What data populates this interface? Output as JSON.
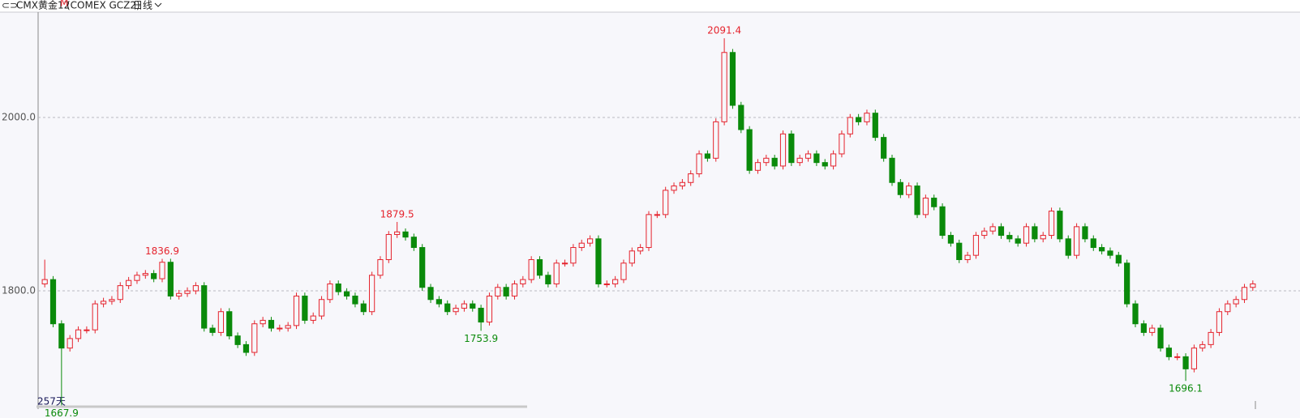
{
  "chart_data": {
    "type": "candlestick",
    "title": "CMX黄金12",
    "title_sup": "M",
    "code": "(COMEX GCZ2)",
    "period": "日线",
    "footer_label": "257天",
    "up_color": "#e5232d",
    "down_color": "#0a8a0a",
    "ylim": [
      1663.6,
      2121.5
    ],
    "yticks": [
      {
        "value": 1800,
        "label": "1800.0"
      },
      {
        "value": 2000,
        "label": "2000.0"
      }
    ],
    "grid": true,
    "candles": [
      [
        1808,
        1836,
        1804,
        1813
      ],
      [
        1813,
        1817,
        1758,
        1762
      ],
      [
        1762,
        1766,
        1667.9,
        1734
      ],
      [
        1734,
        1749,
        1730,
        1745
      ],
      [
        1745,
        1759,
        1741,
        1755
      ],
      [
        1755,
        1759,
        1751,
        1755
      ],
      [
        1755,
        1789,
        1751,
        1785
      ],
      [
        1785,
        1792,
        1781,
        1788
      ],
      [
        1788,
        1794,
        1784,
        1790
      ],
      [
        1790,
        1810,
        1786,
        1806
      ],
      [
        1806,
        1816,
        1802,
        1812
      ],
      [
        1812,
        1822,
        1808,
        1818
      ],
      [
        1818,
        1824,
        1814,
        1820
      ],
      [
        1820,
        1824,
        1810,
        1814
      ],
      [
        1814,
        1836.9,
        1810,
        1833
      ],
      [
        1833,
        1837,
        1790,
        1794
      ],
      [
        1794,
        1801,
        1790,
        1797
      ],
      [
        1797,
        1804,
        1793,
        1800
      ],
      [
        1800,
        1810,
        1796,
        1806
      ],
      [
        1806,
        1810,
        1753,
        1757
      ],
      [
        1757,
        1761,
        1748,
        1752
      ],
      [
        1752,
        1780,
        1748,
        1776
      ],
      [
        1776,
        1780,
        1744,
        1748
      ],
      [
        1748,
        1752,
        1734,
        1738
      ],
      [
        1738,
        1742,
        1725,
        1729
      ],
      [
        1729,
        1766,
        1725,
        1762
      ],
      [
        1762,
        1770,
        1758,
        1766
      ],
      [
        1766,
        1770,
        1753,
        1757
      ],
      [
        1757,
        1761,
        1753,
        1757
      ],
      [
        1757,
        1764,
        1753,
        1760
      ],
      [
        1760,
        1798,
        1756,
        1794
      ],
      [
        1794,
        1798,
        1762,
        1766
      ],
      [
        1766,
        1775,
        1762,
        1771
      ],
      [
        1771,
        1794,
        1767,
        1790
      ],
      [
        1790,
        1812,
        1786,
        1808
      ],
      [
        1808,
        1812,
        1795,
        1799
      ],
      [
        1799,
        1803,
        1790,
        1794
      ],
      [
        1794,
        1798,
        1781,
        1785
      ],
      [
        1785,
        1789,
        1772,
        1776
      ],
      [
        1776,
        1822,
        1772,
        1818
      ],
      [
        1818,
        1840,
        1814,
        1836
      ],
      [
        1836,
        1869,
        1832,
        1865
      ],
      [
        1865,
        1879.5,
        1861,
        1868
      ],
      [
        1868,
        1872,
        1858,
        1862
      ],
      [
        1862,
        1866,
        1846,
        1850
      ],
      [
        1850,
        1854,
        1800,
        1804
      ],
      [
        1804,
        1808,
        1786,
        1790
      ],
      [
        1790,
        1794,
        1781,
        1785
      ],
      [
        1785,
        1789,
        1772,
        1776
      ],
      [
        1776,
        1784,
        1772,
        1780
      ],
      [
        1780,
        1789,
        1776,
        1785
      ],
      [
        1785,
        1789,
        1776,
        1780
      ],
      [
        1780,
        1784,
        1753.9,
        1764
      ],
      [
        1764,
        1798,
        1760,
        1794
      ],
      [
        1794,
        1808,
        1790,
        1804
      ],
      [
        1804,
        1808,
        1790,
        1794
      ],
      [
        1794,
        1812,
        1790,
        1808
      ],
      [
        1808,
        1817,
        1804,
        1813
      ],
      [
        1813,
        1840,
        1809,
        1836
      ],
      [
        1836,
        1840,
        1814,
        1818
      ],
      [
        1818,
        1822,
        1804,
        1808
      ],
      [
        1808,
        1836,
        1804,
        1832
      ],
      [
        1832,
        1836,
        1828,
        1832
      ],
      [
        1832,
        1854,
        1828,
        1850
      ],
      [
        1850,
        1859,
        1846,
        1855
      ],
      [
        1855,
        1864,
        1851,
        1860
      ],
      [
        1860,
        1864,
        1804,
        1808
      ],
      [
        1808,
        1812,
        1804,
        1808
      ],
      [
        1808,
        1817,
        1804,
        1813
      ],
      [
        1813,
        1836,
        1809,
        1832
      ],
      [
        1832,
        1850,
        1828,
        1846
      ],
      [
        1846,
        1854,
        1842,
        1850
      ],
      [
        1850,
        1892,
        1846,
        1888
      ],
      [
        1888,
        1892,
        1884,
        1888
      ],
      [
        1888,
        1920,
        1884,
        1916
      ],
      [
        1916,
        1925,
        1912,
        1921
      ],
      [
        1921,
        1929,
        1917,
        1925
      ],
      [
        1925,
        1939,
        1921,
        1935
      ],
      [
        1935,
        1962,
        1931,
        1958
      ],
      [
        1958,
        1962,
        1949,
        1953
      ],
      [
        1953,
        1999,
        1949,
        1995
      ],
      [
        1995,
        2091.4,
        1991,
        2075
      ],
      [
        2075,
        2079,
        2010,
        2014
      ],
      [
        2014,
        2018,
        1982,
        1986
      ],
      [
        1986,
        1990,
        1935,
        1939
      ],
      [
        1939,
        1952,
        1935,
        1948
      ],
      [
        1948,
        1957,
        1944,
        1953
      ],
      [
        1953,
        1957,
        1940,
        1944
      ],
      [
        1944,
        1985,
        1940,
        1981
      ],
      [
        1981,
        1985,
        1944,
        1948
      ],
      [
        1948,
        1957,
        1944,
        1953
      ],
      [
        1953,
        1962,
        1949,
        1958
      ],
      [
        1958,
        1962,
        1944,
        1948
      ],
      [
        1948,
        1952,
        1940,
        1944
      ],
      [
        1944,
        1962,
        1940,
        1958
      ],
      [
        1958,
        1985,
        1954,
        1981
      ],
      [
        1981,
        2004,
        1977,
        2000
      ],
      [
        2000,
        2004,
        1991,
        1995
      ],
      [
        1995,
        2009,
        1991,
        2005
      ],
      [
        2005,
        2009,
        1973,
        1977
      ],
      [
        1977,
        1981,
        1949,
        1953
      ],
      [
        1953,
        1957,
        1921,
        1925
      ],
      [
        1925,
        1929,
        1907,
        1911
      ],
      [
        1911,
        1925,
        1907,
        1921
      ],
      [
        1921,
        1925,
        1884,
        1888
      ],
      [
        1888,
        1911,
        1884,
        1907
      ],
      [
        1907,
        1911,
        1893,
        1897
      ],
      [
        1897,
        1901,
        1860,
        1864
      ],
      [
        1864,
        1868,
        1851,
        1855
      ],
      [
        1855,
        1859,
        1832,
        1836
      ],
      [
        1836,
        1845,
        1832,
        1841
      ],
      [
        1841,
        1868,
        1837,
        1864
      ],
      [
        1864,
        1873,
        1860,
        1869
      ],
      [
        1869,
        1878,
        1865,
        1874
      ],
      [
        1874,
        1878,
        1860,
        1864
      ],
      [
        1864,
        1868,
        1856,
        1860
      ],
      [
        1860,
        1864,
        1851,
        1855
      ],
      [
        1855,
        1878,
        1851,
        1874
      ],
      [
        1874,
        1878,
        1856,
        1860
      ],
      [
        1860,
        1868,
        1856,
        1864
      ],
      [
        1864,
        1896,
        1860,
        1892
      ],
      [
        1892,
        1896,
        1856,
        1860
      ],
      [
        1860,
        1864,
        1837,
        1841
      ],
      [
        1841,
        1878,
        1837,
        1874
      ],
      [
        1874,
        1878,
        1856,
        1860
      ],
      [
        1860,
        1864,
        1846,
        1850
      ],
      [
        1850,
        1854,
        1842,
        1846
      ],
      [
        1846,
        1850,
        1837,
        1841
      ],
      [
        1841,
        1845,
        1828,
        1832
      ],
      [
        1832,
        1836,
        1781,
        1785
      ],
      [
        1785,
        1789,
        1758,
        1762
      ],
      [
        1762,
        1766,
        1748,
        1752
      ],
      [
        1752,
        1761,
        1748,
        1757
      ],
      [
        1757,
        1761,
        1730,
        1734
      ],
      [
        1734,
        1738,
        1720,
        1724
      ],
      [
        1724,
        1728,
        1720,
        1724
      ],
      [
        1724,
        1728,
        1696.1,
        1710
      ],
      [
        1710,
        1738,
        1706,
        1734
      ],
      [
        1734,
        1742,
        1730,
        1738
      ],
      [
        1738,
        1756,
        1734,
        1752
      ],
      [
        1752,
        1780,
        1748,
        1776
      ],
      [
        1776,
        1789,
        1772,
        1785
      ],
      [
        1785,
        1794,
        1781,
        1790
      ],
      [
        1790,
        1808,
        1786,
        1804
      ],
      [
        1804,
        1812,
        1800,
        1808
      ]
    ]
  }
}
